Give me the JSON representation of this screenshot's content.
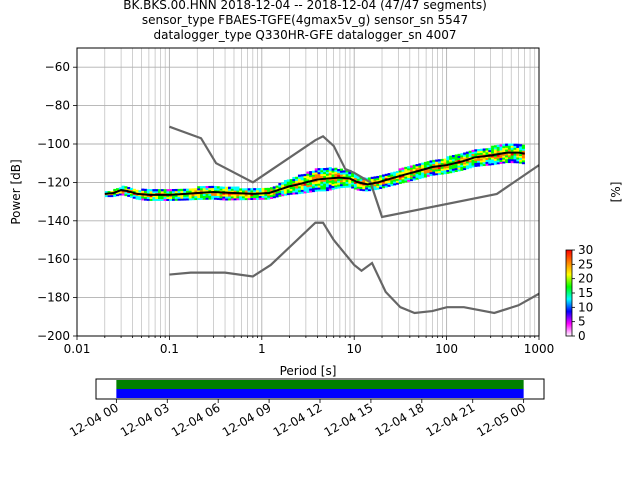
{
  "title": {
    "line1": "BK.BKS.00.HNN   2018-12-04 -- 2018-12-04  (47/47 segments)",
    "line2": "sensor_type FBAES-TGFE(4gmax5v_g) sensor_sn 5547",
    "line3": "datalogger_type Q330HR-GFE datalogger_sn 4007"
  },
  "chart_data": [
    {
      "type": "heatmap",
      "xlabel": "Period [s]",
      "ylabel": "Power [dB]",
      "xscale": "log",
      "xlim": [
        0.01,
        1000
      ],
      "ylim": [
        -200,
        -50
      ],
      "xticks": [
        {
          "value": 0.01,
          "label": "0.01"
        },
        {
          "value": 0.1,
          "label": "0.1"
        },
        {
          "value": 1,
          "label": "1"
        },
        {
          "value": 10,
          "label": "10"
        },
        {
          "value": 100,
          "label": "100"
        },
        {
          "value": 1000,
          "label": "1000"
        }
      ],
      "yticks": [
        {
          "value": -60,
          "label": "−60"
        },
        {
          "value": -80,
          "label": "−80"
        },
        {
          "value": -100,
          "label": "−100"
        },
        {
          "value": -120,
          "label": "−120"
        },
        {
          "value": -140,
          "label": "−140"
        },
        {
          "value": -160,
          "label": "−160"
        },
        {
          "value": -180,
          "label": "−180"
        },
        {
          "value": -200,
          "label": "−200"
        }
      ],
      "grid": true,
      "noise_model_high": [
        [
          0.1,
          -91
        ],
        [
          0.22,
          -97
        ],
        [
          0.32,
          -110
        ],
        [
          0.8,
          -120
        ],
        [
          3.8,
          -98
        ],
        [
          4.6,
          -96
        ],
        [
          6,
          -101
        ],
        [
          8,
          -113
        ],
        [
          10,
          -115
        ],
        [
          15,
          -120
        ],
        [
          20,
          -138
        ],
        [
          350,
          -126
        ],
        [
          1000,
          -111
        ]
      ],
      "noise_model_low": [
        [
          0.1,
          -168
        ],
        [
          0.17,
          -167
        ],
        [
          0.4,
          -167
        ],
        [
          0.8,
          -169
        ],
        [
          1.25,
          -163
        ],
        [
          3.8,
          -141
        ],
        [
          4.6,
          -141
        ],
        [
          6,
          -150
        ],
        [
          10,
          -163
        ],
        [
          12,
          -166
        ],
        [
          15.6,
          -162
        ],
        [
          21.9,
          -177
        ],
        [
          31.6,
          -185
        ],
        [
          45,
          -188
        ],
        [
          70,
          -187
        ],
        [
          101,
          -185
        ],
        [
          154,
          -185
        ],
        [
          328,
          -188
        ],
        [
          600,
          -184
        ],
        [
          1000,
          -178
        ]
      ],
      "mode_curve": [
        [
          0.02,
          -126
        ],
        [
          0.025,
          -125.5
        ],
        [
          0.03,
          -124
        ],
        [
          0.035,
          -124.5
        ],
        [
          0.045,
          -126
        ],
        [
          0.06,
          -126.5
        ],
        [
          0.08,
          -126.5
        ],
        [
          0.1,
          -126.5
        ],
        [
          0.15,
          -126
        ],
        [
          0.2,
          -125.5
        ],
        [
          0.3,
          -125
        ],
        [
          0.5,
          -125.5
        ],
        [
          0.8,
          -126
        ],
        [
          1.2,
          -125.5
        ],
        [
          1.5,
          -124
        ],
        [
          2,
          -122
        ],
        [
          2.5,
          -121
        ],
        [
          3,
          -120
        ],
        [
          4,
          -118.5
        ],
        [
          5,
          -118
        ],
        [
          7,
          -117.5
        ],
        [
          9,
          -118
        ],
        [
          11,
          -120
        ],
        [
          14,
          -121
        ],
        [
          18,
          -120
        ],
        [
          25,
          -118
        ],
        [
          35,
          -116
        ],
        [
          50,
          -114
        ],
        [
          70,
          -112
        ],
        [
          100,
          -111
        ],
        [
          150,
          -109
        ],
        [
          200,
          -107
        ],
        [
          300,
          -106
        ],
        [
          450,
          -104.5
        ],
        [
          600,
          -104.5
        ],
        [
          700,
          -105
        ]
      ],
      "pdf_band": [
        [
          0.02,
          1
        ],
        [
          0.025,
          1.5
        ],
        [
          0.03,
          2
        ],
        [
          0.05,
          2.5
        ],
        [
          0.1,
          2.5
        ],
        [
          0.2,
          3
        ],
        [
          0.4,
          3.5
        ],
        [
          0.8,
          2.5
        ],
        [
          1.5,
          3
        ],
        [
          3,
          5
        ],
        [
          5,
          6
        ],
        [
          9,
          4
        ],
        [
          15,
          3
        ],
        [
          30,
          3.5
        ],
        [
          100,
          4
        ],
        [
          300,
          4.5
        ],
        [
          700,
          5
        ]
      ],
      "colorbar": {
        "label": "[%]",
        "min": 0,
        "max": 30,
        "ticks": [
          "0",
          "5",
          "10",
          "15",
          "20",
          "25",
          "30"
        ]
      },
      "colormap_stops": [
        "#ffffff",
        "#ff00ff",
        "#0000ff",
        "#00ffff",
        "#00ff00",
        "#ffff00",
        "#ff8000",
        "#ff0000"
      ]
    },
    {
      "type": "timeline",
      "xticks": [
        "12-04 00",
        "12-04 03",
        "12-04 06",
        "12-04 09",
        "12-04 12",
        "12-04 15",
        "12-04 18",
        "12-04 21",
        "12-05 00"
      ],
      "coverage": {
        "start_hour": 0,
        "end_hour": 24,
        "range_hours": [
          -1.2,
          25.2
        ]
      },
      "top_color": "#008000",
      "bottom_color": "#0000ff"
    }
  ],
  "colors": {
    "noise_model": "#666666",
    "mode": "#000000",
    "grid": "#b0b0b0"
  }
}
